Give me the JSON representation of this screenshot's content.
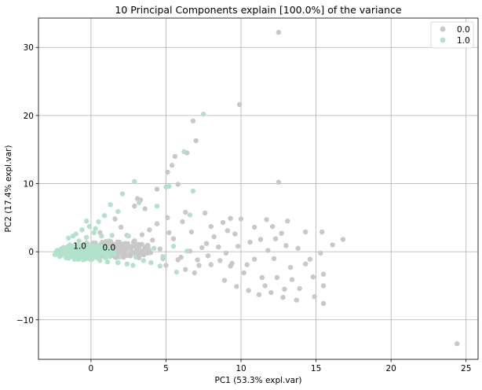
{
  "chart_data": {
    "type": "scatter",
    "title": "10 Principal Components explain [100.0%] of the variance",
    "xlabel": "PC1 (53.3% expl.var)",
    "ylabel": "PC2 (17.4% expl.var)",
    "xlim": [
      -3.5,
      25.8
    ],
    "ylim": [
      -15.8,
      34.3
    ],
    "xticks": [
      0,
      5,
      10,
      15,
      20,
      25
    ],
    "yticks": [
      -10,
      0,
      10,
      20,
      30
    ],
    "grid": true,
    "legend_position": "top-right",
    "series": [
      {
        "name": "0.0",
        "color": "#c8c8c8",
        "points": [
          [
            12.5,
            32.2
          ],
          [
            9.9,
            21.6
          ],
          [
            6.8,
            19.2
          ],
          [
            7.0,
            16.3
          ],
          [
            6.4,
            14.5
          ],
          [
            5.6,
            14.0
          ],
          [
            5.4,
            12.7
          ],
          [
            5.1,
            11.7
          ],
          [
            5.8,
            9.9
          ],
          [
            12.5,
            10.2
          ],
          [
            3.3,
            7.6
          ],
          [
            4.4,
            9.2
          ],
          [
            3.1,
            7.8
          ],
          [
            2.9,
            6.7
          ],
          [
            3.6,
            6.3
          ],
          [
            5.1,
            5.0
          ],
          [
            6.3,
            5.8
          ],
          [
            7.6,
            5.7
          ],
          [
            9.3,
            4.9
          ],
          [
            10.0,
            4.8
          ],
          [
            11.7,
            4.7
          ],
          [
            12.1,
            3.7
          ],
          [
            13.1,
            4.5
          ],
          [
            14.3,
            2.9
          ],
          [
            15.4,
            2.9
          ],
          [
            16.8,
            1.8
          ],
          [
            16.1,
            1.0
          ],
          [
            15.3,
            -0.2
          ],
          [
            14.6,
            -1.1
          ],
          [
            15.5,
            -3.3
          ],
          [
            15.5,
            -5.0
          ],
          [
            14.9,
            -6.6
          ],
          [
            15.5,
            -7.6
          ],
          [
            13.7,
            -7.1
          ],
          [
            12.9,
            -5.5
          ],
          [
            13.4,
            -4.1
          ],
          [
            12.4,
            -3.8
          ],
          [
            11.4,
            -3.8
          ],
          [
            12.0,
            -6.0
          ],
          [
            11.2,
            -6.3
          ],
          [
            10.5,
            -5.7
          ],
          [
            9.7,
            -5.1
          ],
          [
            8.9,
            -4.2
          ],
          [
            9.3,
            -2.1
          ],
          [
            8.6,
            -1.3
          ],
          [
            7.8,
            -0.6
          ],
          [
            6.9,
            -3.1
          ],
          [
            6.3,
            -2.6
          ],
          [
            7.4,
            0.6
          ],
          [
            8.2,
            2.2
          ],
          [
            9.1,
            3.1
          ],
          [
            10.6,
            1.4
          ],
          [
            11.8,
            0.2
          ],
          [
            12.7,
            2.7
          ],
          [
            13.8,
            0.5
          ],
          [
            14.3,
            -1.8
          ],
          [
            13.3,
            -2.3
          ],
          [
            12.2,
            -1.0
          ],
          [
            10.9,
            -1.1
          ],
          [
            9.8,
            0.8
          ],
          [
            9.0,
            -0.2
          ],
          [
            8.0,
            -1.9
          ],
          [
            7.2,
            -2.0
          ],
          [
            6.0,
            -0.8
          ],
          [
            5.5,
            1.9
          ],
          [
            6.7,
            2.9
          ],
          [
            8.0,
            3.7
          ],
          [
            9.6,
            2.6
          ],
          [
            10.9,
            3.6
          ],
          [
            12.3,
            1.9
          ],
          [
            13.0,
            0.9
          ],
          [
            14.8,
            -3.7
          ],
          [
            13.9,
            -5.4
          ],
          [
            12.8,
            -6.7
          ],
          [
            11.6,
            -5.0
          ],
          [
            10.2,
            -3.1
          ],
          [
            9.4,
            -1.7
          ],
          [
            8.5,
            0.7
          ],
          [
            7.7,
            1.2
          ],
          [
            6.6,
            0.1
          ],
          [
            5.8,
            -1.2
          ],
          [
            5.0,
            -2.0
          ],
          [
            4.6,
            0.4
          ],
          [
            5.2,
            2.8
          ],
          [
            4.4,
            4.1
          ],
          [
            3.9,
            3.2
          ],
          [
            4.1,
            1.7
          ],
          [
            3.7,
            0.2
          ],
          [
            3.2,
            -0.9
          ],
          [
            2.7,
            0.7
          ],
          [
            2.4,
            2.4
          ],
          [
            2.0,
            3.6
          ],
          [
            1.6,
            4.8
          ],
          [
            1.9,
            1.2
          ],
          [
            1.4,
            -0.1
          ],
          [
            1.0,
            1.5
          ],
          [
            0.6,
            2.8
          ],
          [
            0.3,
            0.6
          ],
          [
            0.8,
            -0.5
          ],
          [
            1.7,
            0.3
          ],
          [
            2.2,
            -0.3
          ],
          [
            2.9,
            1.6
          ],
          [
            3.4,
            2.5
          ],
          [
            4.8,
            -1.0
          ],
          [
            24.4,
            -13.5
          ],
          [
            6.1,
            4.4
          ],
          [
            8.8,
            4.3
          ],
          [
            10.4,
            -1.9
          ],
          [
            11.3,
            1.8
          ],
          [
            7.1,
            -1.2
          ]
        ]
      },
      {
        "name": "1.0",
        "color": "#b2e2cc",
        "points": [
          [
            7.5,
            20.2
          ],
          [
            6.2,
            14.7
          ],
          [
            6.8,
            8.9
          ],
          [
            5.2,
            9.6
          ],
          [
            2.9,
            10.3
          ],
          [
            2.1,
            8.5
          ],
          [
            4.4,
            6.7
          ],
          [
            1.3,
            6.9
          ],
          [
            1.8,
            5.9
          ],
          [
            3.2,
            7.2
          ],
          [
            5.0,
            9.5
          ],
          [
            6.6,
            5.4
          ],
          [
            0.9,
            5.3
          ],
          [
            0.5,
            4.4
          ],
          [
            -0.3,
            4.5
          ],
          [
            -0.1,
            3.7
          ],
          [
            -0.6,
            3.2
          ],
          [
            -1.0,
            2.6
          ],
          [
            -1.5,
            2.0
          ],
          [
            0.2,
            2.8
          ],
          [
            0.7,
            2.3
          ],
          [
            1.2,
            1.6
          ],
          [
            1.6,
            0.9
          ],
          [
            2.1,
            0.4
          ],
          [
            2.6,
            -0.2
          ],
          [
            3.0,
            -0.8
          ],
          [
            3.5,
            -1.3
          ],
          [
            4.0,
            -1.6
          ],
          [
            4.6,
            -2.1
          ],
          [
            5.7,
            -3.0
          ],
          [
            6.4,
            0.1
          ],
          [
            5.5,
            0.8
          ],
          [
            4.2,
            0.5
          ],
          [
            3.2,
            0.8
          ],
          [
            2.3,
            1.2
          ],
          [
            1.4,
            2.4
          ],
          [
            0.6,
            1.0
          ],
          [
            -0.3,
            1.3
          ],
          [
            -0.8,
            1.6
          ],
          [
            -1.4,
            1.0
          ],
          [
            -1.9,
            0.5
          ],
          [
            -2.2,
            0.0
          ],
          [
            -2.4,
            -0.4
          ],
          [
            -2.1,
            -0.7
          ],
          [
            -1.6,
            -0.9
          ],
          [
            -1.1,
            -1.1
          ],
          [
            -0.5,
            -1.2
          ],
          [
            0.1,
            -1.0
          ],
          [
            0.6,
            -1.3
          ],
          [
            1.1,
            -1.5
          ],
          [
            1.8,
            -1.6
          ],
          [
            2.4,
            -1.8
          ],
          [
            2.8,
            -2.0
          ],
          [
            -0.2,
            -0.4
          ],
          [
            0.4,
            -0.2
          ],
          [
            -1.0,
            -0.3
          ],
          [
            -1.7,
            0.2
          ],
          [
            -0.6,
            0.5
          ],
          [
            0.9,
            0.2
          ],
          [
            1.9,
            -0.8
          ],
          [
            -0.3,
            2.1
          ],
          [
            0.3,
            3.4
          ],
          [
            -1.2,
            2.3
          ],
          [
            2.5,
            2.3
          ],
          [
            4.8,
            -0.7
          ]
        ]
      }
    ],
    "annotations": [
      {
        "text": "1.0",
        "x": -0.75,
        "y": 0.4
      },
      {
        "text": "0.0",
        "x": 1.2,
        "y": 0.2
      }
    ]
  }
}
